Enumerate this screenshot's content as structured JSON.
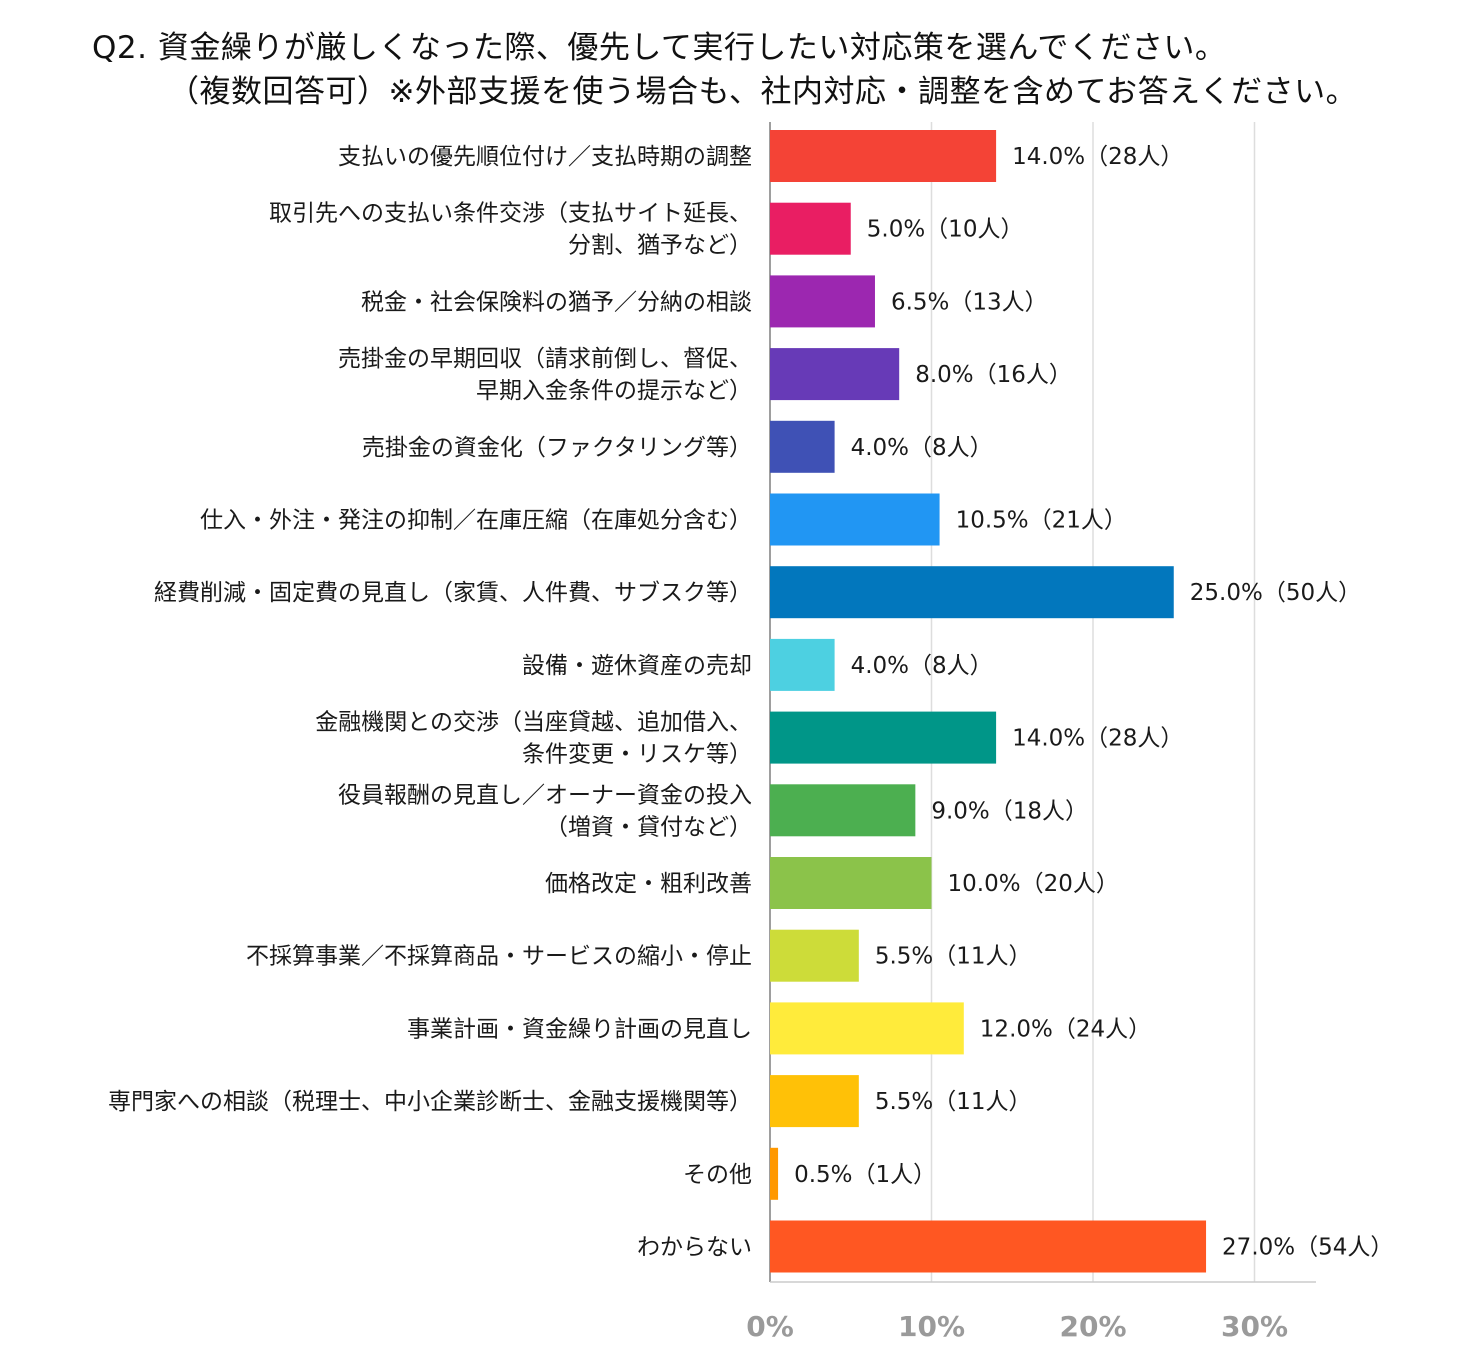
{
  "chart_data": {
    "type": "bar",
    "orientation": "horizontal",
    "title": "Q2. 資金繰りが厳しくなった際、優先して実行したい対応策を選んでください。",
    "subtitle": "（複数回答可）※外部支援を使う場合も、社内対応・調整を含めてお答えください。",
    "xlabel": "",
    "ylabel": "",
    "xlim": [
      0,
      34
    ],
    "grid": true,
    "legend": "none",
    "ticks": [
      "0%",
      "10%",
      "20%",
      "30%"
    ],
    "tick_values": [
      0,
      10,
      20,
      30
    ],
    "categories": [
      [
        "支払いの優先順位付け／支払時期の調整"
      ],
      [
        "取引先への支払い条件交渉（支払サイト延長、",
        "分割、猶予など）"
      ],
      [
        "税金・社会保険料の猶予／分納の相談"
      ],
      [
        "売掛金の早期回収（請求前倒し、督促、",
        "早期入金条件の提示など）"
      ],
      [
        "売掛金の資金化（ファクタリング等）"
      ],
      [
        "仕入・外注・発注の抑制／在庫圧縮（在庫処分含む）"
      ],
      [
        "経費削減・固定費の見直し（家賃、人件費、サブスク等）"
      ],
      [
        "設備・遊休資産の売却"
      ],
      [
        "金融機関との交渉（当座貸越、追加借入、",
        "条件変更・リスケ等）"
      ],
      [
        "役員報酬の見直し／オーナー資金の投入",
        "（増資・貸付など）"
      ],
      [
        "価格改定・粗利改善"
      ],
      [
        "不採算事業／不採算商品・サービスの縮小・停止"
      ],
      [
        "事業計画・資金繰り計画の見直し"
      ],
      [
        "専門家への相談（税理士、中小企業診断士、金融支援機関等）"
      ],
      [
        "その他"
      ],
      [
        "わからない"
      ]
    ],
    "values": [
      14.0,
      5.0,
      6.5,
      8.0,
      4.0,
      10.5,
      25.0,
      4.0,
      14.0,
      9.0,
      10.0,
      5.5,
      12.0,
      5.5,
      0.5,
      27.0
    ],
    "value_labels": [
      "14.0%（28人）",
      "5.0%（10人）",
      "6.5%（13人）",
      "8.0%（16人）",
      "4.0%（8人）",
      "10.5%（21人）",
      "25.0%（50人）",
      "4.0%（8人）",
      "14.0%（28人）",
      "9.0%（18人）",
      "10.0%（20人）",
      "5.5%（11人）",
      "12.0%（24人）",
      "5.5%（11人）",
      "0.5%（1人）",
      "27.0%（54人）"
    ],
    "colors": [
      "#f44336",
      "#e91e63",
      "#9c27b0",
      "#673ab7",
      "#3f51b5",
      "#2196f3",
      "#0277bd",
      "#4dd0e1",
      "#009688",
      "#4caf50",
      "#8bc34a",
      "#cddc39",
      "#ffeb3b",
      "#ffc107",
      "#ff9800",
      "#ff5722"
    ]
  }
}
